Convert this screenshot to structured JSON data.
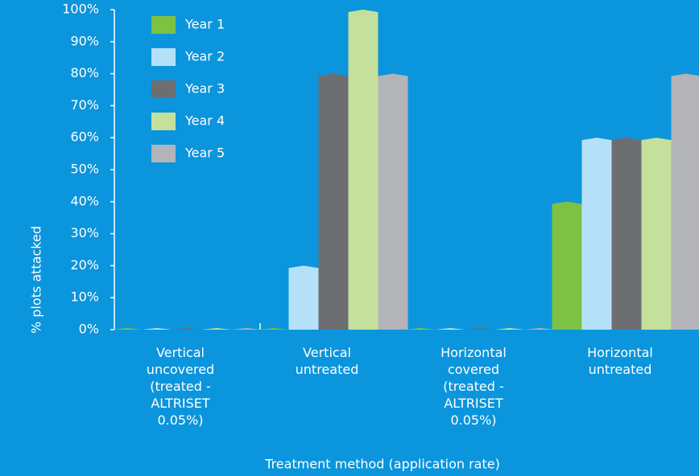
{
  "chart_data": {
    "type": "bar",
    "categories": [
      "Vertical\nuncovered\n(treated -\nALTRISET\n0.05%)",
      "Vertical\nuntreated",
      "Horizontal\ncovered\n(treated -\nALTRISET\n0.05%)",
      "Horizontal\nuntreated"
    ],
    "series": [
      {
        "name": "Year 1",
        "color": "#7dc242",
        "values": [
          0,
          0,
          0,
          40
        ]
      },
      {
        "name": "Year 2",
        "color": "#b5e1f8",
        "values": [
          0,
          20,
          0,
          60
        ]
      },
      {
        "name": "Year 3",
        "color": "#6d6e71",
        "values": [
          0,
          80,
          0,
          60
        ]
      },
      {
        "name": "Year 4",
        "color": "#c5e09d",
        "values": [
          0,
          100,
          0,
          60
        ]
      },
      {
        "name": "Year 5",
        "color": "#b2b4b7",
        "values": [
          0,
          80,
          0,
          80
        ]
      }
    ],
    "xlabel": "Treatment method (application rate)",
    "ylabel": "% plots attacked",
    "ylim": [
      0,
      100
    ],
    "yticks": [
      {
        "value": 0,
        "label": "0%"
      },
      {
        "value": 10,
        "label": "10%"
      },
      {
        "value": 20,
        "label": "20%"
      },
      {
        "value": 30,
        "label": "30%"
      },
      {
        "value": 40,
        "label": "40%"
      },
      {
        "value": 50,
        "label": "50%"
      },
      {
        "value": 60,
        "label": "60%"
      },
      {
        "value": 70,
        "label": "70%"
      },
      {
        "value": 80,
        "label": "80%"
      },
      {
        "value": 90,
        "label": "90%"
      },
      {
        "value": 100,
        "label": "100%"
      }
    ],
    "legend": "upper left"
  }
}
